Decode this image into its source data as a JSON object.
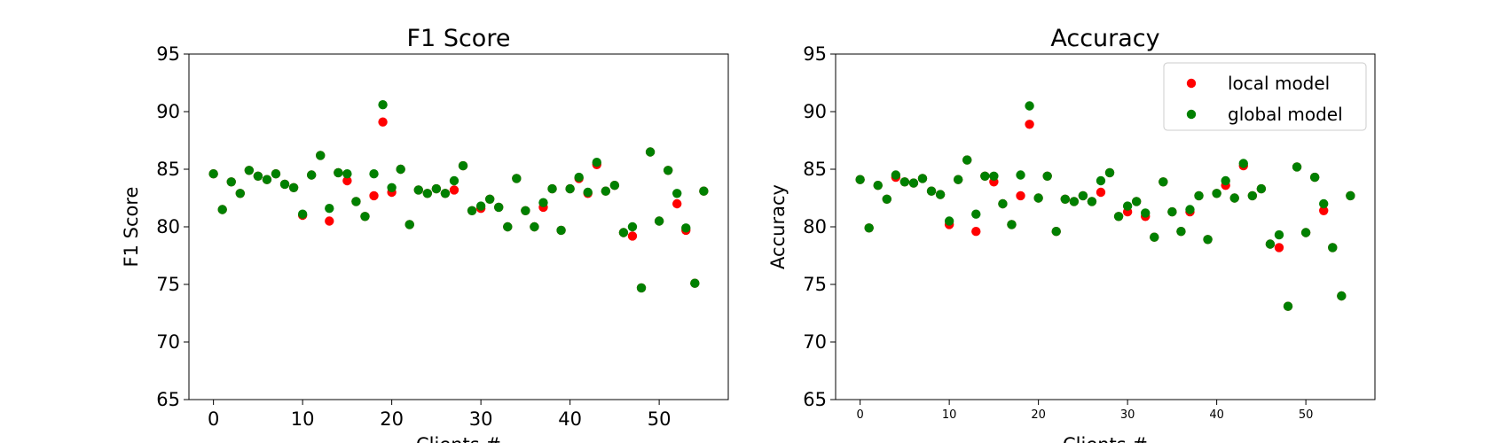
{
  "chart_data": [
    {
      "type": "scatter",
      "title": "F1 Score",
      "xlabel": "Clients #",
      "ylabel": "F1 Score",
      "xlim": [
        -2.75,
        57.75
      ],
      "ylim": [
        65,
        95
      ],
      "xticks": [
        0,
        10,
        20,
        30,
        40,
        50
      ],
      "yticks": [
        65,
        70,
        75,
        80,
        85,
        90,
        95
      ],
      "legend": null,
      "grid": false,
      "x": [
        0,
        1,
        2,
        3,
        4,
        5,
        6,
        7,
        8,
        9,
        10,
        11,
        12,
        13,
        14,
        15,
        16,
        17,
        18,
        19,
        20,
        21,
        22,
        23,
        24,
        25,
        26,
        27,
        28,
        29,
        30,
        31,
        32,
        33,
        34,
        35,
        36,
        37,
        38,
        39,
        40,
        41,
        42,
        43,
        44,
        45,
        46,
        47,
        48,
        49,
        50,
        51,
        52,
        53,
        54,
        55
      ],
      "series": [
        {
          "name": "local model",
          "color": "#ff0000",
          "values": [
            84.6,
            81.5,
            83.9,
            82.9,
            84.9,
            84.4,
            84.1,
            84.6,
            83.7,
            83.4,
            81.0,
            84.5,
            86.2,
            80.5,
            84.7,
            84.0,
            82.2,
            80.9,
            82.7,
            89.1,
            83.0,
            85.0,
            80.2,
            83.2,
            82.9,
            83.3,
            82.9,
            83.2,
            85.3,
            81.4,
            81.6,
            82.4,
            81.7,
            80.0,
            84.2,
            81.4,
            80.0,
            81.7,
            83.3,
            79.7,
            83.3,
            84.2,
            82.9,
            85.4,
            83.1,
            83.6,
            79.5,
            79.2,
            74.7,
            86.5,
            80.5,
            84.9,
            82.0,
            79.7,
            75.1,
            83.1
          ]
        },
        {
          "name": "global model",
          "color": "#008000",
          "values": [
            84.6,
            81.5,
            83.9,
            82.9,
            84.9,
            84.4,
            84.1,
            84.6,
            83.7,
            83.4,
            81.1,
            84.5,
            86.2,
            81.6,
            84.7,
            84.6,
            82.2,
            80.9,
            84.6,
            90.6,
            83.4,
            85.0,
            80.2,
            83.2,
            82.9,
            83.3,
            82.9,
            84.0,
            85.3,
            81.4,
            81.8,
            82.4,
            81.7,
            80.0,
            84.2,
            81.4,
            80.0,
            82.1,
            83.3,
            79.7,
            83.3,
            84.3,
            83.0,
            85.6,
            83.1,
            83.6,
            79.5,
            80.0,
            74.7,
            86.5,
            80.5,
            84.9,
            82.9,
            79.9,
            75.1,
            83.1
          ]
        }
      ]
    },
    {
      "type": "scatter",
      "title": "Accuracy",
      "xlabel": "Clients #",
      "ylabel": "Accuracy",
      "xlim": [
        -2.75,
        57.75
      ],
      "ylim": [
        65,
        95
      ],
      "xticks": [
        0,
        10,
        20,
        30,
        40,
        50
      ],
      "yticks": [
        65,
        70,
        75,
        80,
        85,
        90,
        95
      ],
      "legend": "upper right",
      "grid": false,
      "x": [
        0,
        1,
        2,
        3,
        4,
        5,
        6,
        7,
        8,
        9,
        10,
        11,
        12,
        13,
        14,
        15,
        16,
        17,
        18,
        19,
        20,
        21,
        22,
        23,
        24,
        25,
        26,
        27,
        28,
        29,
        30,
        31,
        32,
        33,
        34,
        35,
        36,
        37,
        38,
        39,
        40,
        41,
        42,
        43,
        44,
        45,
        46,
        47,
        48,
        49,
        50,
        51,
        52,
        53,
        54,
        55
      ],
      "series": [
        {
          "name": "local model",
          "color": "#ff0000",
          "values": [
            84.1,
            79.9,
            83.6,
            82.4,
            84.3,
            83.9,
            83.8,
            84.2,
            83.1,
            82.8,
            80.2,
            84.1,
            85.8,
            79.6,
            84.4,
            83.9,
            82.0,
            80.2,
            82.7,
            88.9,
            82.5,
            84.4,
            79.6,
            82.4,
            82.2,
            82.7,
            82.2,
            83.0,
            84.7,
            80.9,
            81.3,
            82.2,
            80.9,
            79.1,
            83.9,
            81.3,
            79.6,
            81.3,
            82.7,
            78.9,
            82.9,
            83.6,
            82.5,
            85.3,
            82.7,
            83.3,
            78.5,
            78.2,
            73.1,
            85.2,
            79.5,
            84.3,
            81.4,
            78.2,
            74.0,
            82.7
          ]
        },
        {
          "name": "global model",
          "color": "#008000",
          "values": [
            84.1,
            79.9,
            83.6,
            82.4,
            84.5,
            83.9,
            83.8,
            84.2,
            83.1,
            82.8,
            80.5,
            84.1,
            85.8,
            81.1,
            84.4,
            84.4,
            82.0,
            80.2,
            84.5,
            90.5,
            82.5,
            84.4,
            79.6,
            82.4,
            82.2,
            82.7,
            82.2,
            84.0,
            84.7,
            80.9,
            81.8,
            82.2,
            81.2,
            79.1,
            83.9,
            81.3,
            79.6,
            81.5,
            82.7,
            78.9,
            82.9,
            84.0,
            82.5,
            85.5,
            82.7,
            83.3,
            78.5,
            79.3,
            73.1,
            85.2,
            79.5,
            84.3,
            82.0,
            78.2,
            74.0,
            82.7
          ]
        }
      ]
    }
  ]
}
